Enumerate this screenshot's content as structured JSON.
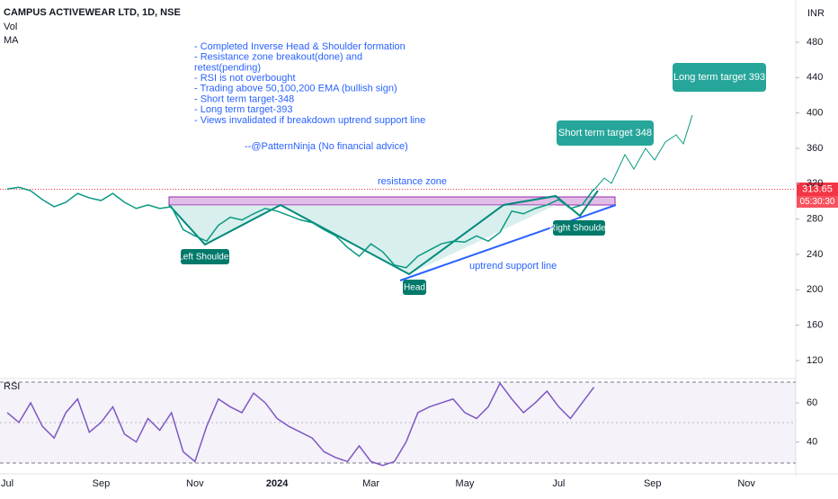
{
  "chart_data": [
    {
      "type": "line",
      "title": "CAMPUS ACTIVEWEAR LTD, 1D, NSE",
      "indicators": [
        "Vol",
        "MA"
      ],
      "currency": "INR",
      "categories": [
        "Jul",
        null,
        null,
        null,
        null,
        null,
        null,
        null,
        "Sep",
        null,
        null,
        null,
        null,
        null,
        null,
        null,
        "Nov",
        null,
        null,
        null,
        null,
        null,
        null,
        "2024",
        null,
        null,
        null,
        null,
        null,
        null,
        null,
        "Mar",
        null,
        null,
        null,
        null,
        null,
        null,
        null,
        "May",
        null,
        null,
        null,
        null,
        null,
        null,
        null,
        "Jul",
        null,
        null,
        null,
        null,
        null,
        null,
        null,
        "Sep",
        null,
        null,
        null,
        null,
        null,
        null,
        null,
        "Nov"
      ],
      "series": [
        {
          "name": "CAMPUS",
          "color": "#089981",
          "values": [
            314,
            316,
            312,
            302,
            294,
            299,
            309,
            304,
            301,
            309,
            299,
            292,
            296,
            292,
            294,
            268,
            261,
            255,
            273,
            282,
            279,
            286,
            292,
            289,
            284,
            279,
            276,
            268,
            261,
            248,
            238,
            252,
            243,
            228,
            225,
            238,
            245,
            252,
            255,
            254,
            261,
            255,
            265,
            289,
            286,
            292,
            296,
            302,
            292,
            296,
            314,
            null,
            null,
            null,
            null,
            null,
            null,
            null,
            null,
            null,
            null,
            null,
            null,
            null
          ]
        }
      ],
      "last_price": 313.65,
      "countdown": "05:30:30",
      "ylim": [
        120,
        480
      ],
      "yticks": [
        120,
        160,
        200,
        240,
        280,
        320,
        360,
        400,
        440,
        480
      ],
      "notes": [
        "- Completed Inverse Head & Shoulder formation",
        "- Resistance zone breakout(done) and",
        "   retest(pending)",
        "- RSI is not overbought",
        "- Trading above 50,100,200 EMA (bullish sign)",
        "- Short term target-348",
        "- Long term target-393",
        "- Views invalidated if breakdown uptrend support line",
        "--@PatternNinja (No financial advice)"
      ],
      "annotations": {
        "resistance": "resistance zone",
        "support": "uptrend support line",
        "left_shoulder": "Left Shoulder",
        "head": "Head",
        "right_shoulder": "Right Shoulder",
        "short_target": "Short term target 348",
        "long_target": "Long term target 393"
      }
    },
    {
      "type": "line",
      "title": "RSI",
      "series": [
        {
          "name": "RSI",
          "color": "#7e57c2",
          "values": [
            55,
            50,
            60,
            48,
            42,
            55,
            62,
            45,
            50,
            58,
            44,
            40,
            52,
            46,
            55,
            35,
            30,
            48,
            62,
            58,
            55,
            65,
            60,
            52,
            48,
            45,
            42,
            35,
            32,
            30,
            38,
            30,
            28,
            30,
            40,
            55,
            58,
            60,
            62,
            55,
            52,
            58,
            70,
            62,
            55,
            60,
            66,
            58,
            52,
            60,
            68
          ]
        }
      ],
      "ylim": [
        26,
        72
      ],
      "yticks": [
        40,
        60
      ]
    }
  ]
}
